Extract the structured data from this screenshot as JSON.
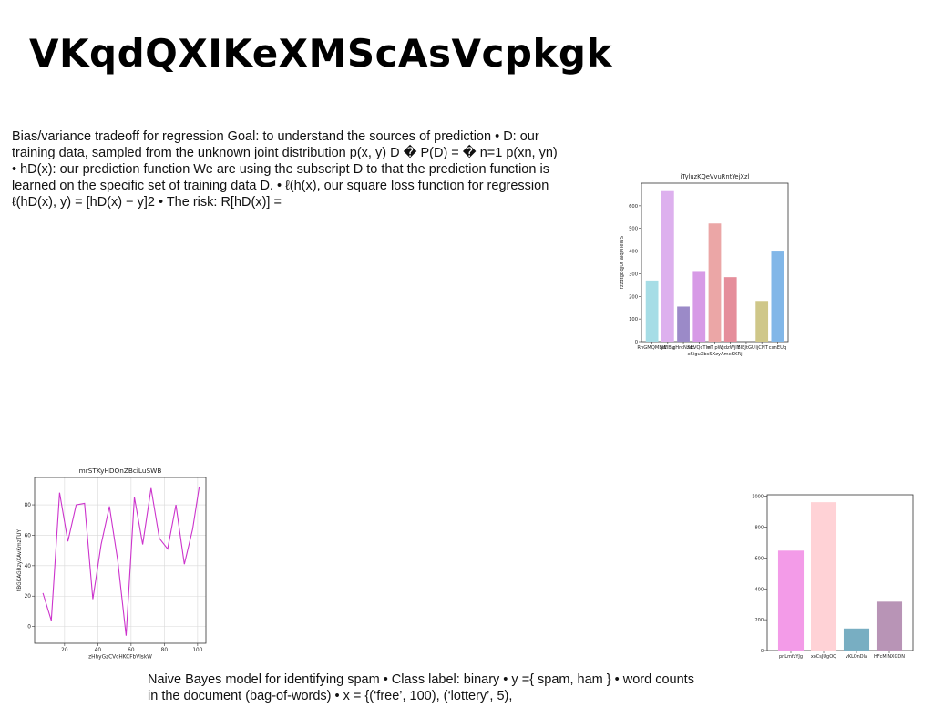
{
  "slide": {
    "title": "VKqdQXIKeXMScAsVcpkgk",
    "paragraph1": "Bias/variance tradeoff for regression Goal: to understand the sources of prediction • D: our training data, sampled from the unknown joint distribution p(x, y) D � P(D) = � n=1 p(xn, yn) • hD(x): our prediction function We are using the subscript D to that the prediction function is learned on the specific set of training data D. • ℓ(h(x), our square loss function for regression ℓ(hD(x), y) = [hD(x) − y]2 • The risk: R[hD(x)] =",
    "paragraph2": "Naive Bayes model for identifying spam • Class label: binary • y ={ spam, ham } • word counts in the document (bag-of-words) • x = {(‘free’, 100), (‘lottery’, 5),"
  },
  "chart_data": [
    {
      "type": "bar",
      "title": "iTyluzKQeVvuRntYejXzl",
      "xlabel": "xSiguXbsSXzyAmxKKRj",
      "ylabel": "fzzdtgBqjUt aiqMTeWS",
      "categories": [
        "RhGMQMBW",
        "yElBu",
        "gHrcNzsc",
        "SEVQcTIw",
        "nT pW",
        "gdzWjIY",
        "BIEJtGU",
        "ljCNT",
        "cxnEUq"
      ],
      "values": [
        270,
        665,
        155,
        312,
        522,
        285,
        0,
        180,
        398
      ],
      "colors": [
        "#a6dde6",
        "#ddb0ee",
        "#9b8ac8",
        "#d79ae6",
        "#eba6a6",
        "#e58e9b",
        "#ffffff",
        "#cfc789",
        "#82b7e8"
      ],
      "ylim": [
        0,
        700
      ],
      "yticks": [
        0,
        100,
        200,
        300,
        400,
        500,
        600
      ]
    },
    {
      "type": "line",
      "title": "mrSTKyHDQnZBciLuSWB",
      "xlabel": "zHhyGzCVcHKCFbVlskW",
      "ylabel": "tBGKAGRzyXAvKmzTUY",
      "x": [
        7,
        12,
        17,
        22,
        27,
        32,
        37,
        42,
        47,
        52,
        57,
        62,
        67,
        72,
        77,
        82,
        87,
        92,
        97,
        101
      ],
      "y": [
        22,
        4,
        88,
        56,
        80,
        81,
        18,
        54,
        79,
        43,
        -6,
        85,
        54,
        91,
        58,
        51,
        80,
        41,
        64,
        92
      ],
      "color": "#cc33cc",
      "xlim": [
        2,
        105
      ],
      "ylim": [
        -11,
        98
      ],
      "xticks": [
        20,
        40,
        60,
        80,
        100
      ],
      "yticks": [
        0,
        20,
        40,
        60,
        80
      ]
    },
    {
      "type": "bar",
      "title": "",
      "xlabel": "",
      "ylabel": "",
      "categories": [
        "pnLmfzYJg",
        "xoCsJUgOQ",
        "vKLOnDla",
        "HFcM NXGDN"
      ],
      "values": [
        648,
        962,
        143,
        317
      ],
      "colors": [
        "#f39be8",
        "#ffd2d6",
        "#78aec2",
        "#b894b6"
      ],
      "ylim": [
        0,
        1010
      ],
      "yticks": [
        0,
        200,
        400,
        600,
        800,
        1000
      ]
    }
  ]
}
